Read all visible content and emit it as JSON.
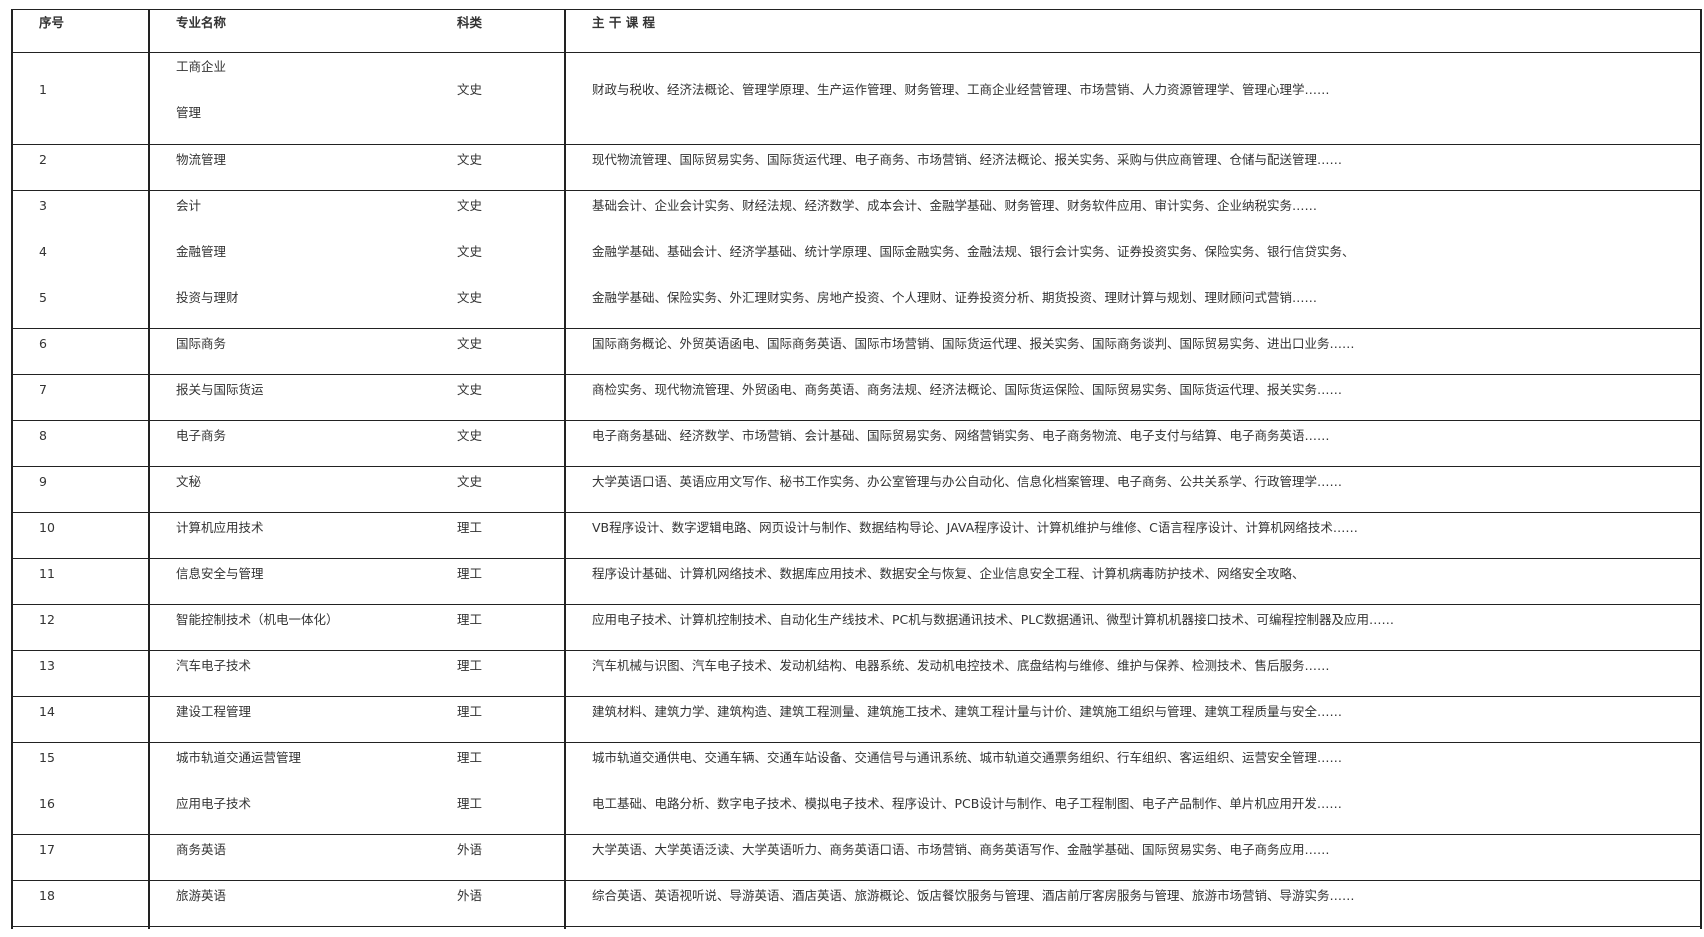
{
  "header": {
    "index": "序号",
    "major": "专业名称",
    "category": "科类",
    "courses": "主 干 课 程"
  },
  "rows": [
    {
      "index": "1",
      "major": [
        "工商企业",
        "管理"
      ],
      "category": "文史",
      "courses": "财政与税收、经济法概论、管理学原理、生产运作管理、财务管理、工商企业经营管理、市场营销、人力资源管理学、管理心理学……"
    },
    {
      "index": "2",
      "major": [
        "物流管理"
      ],
      "category": "文史",
      "courses": "现代物流管理、国际贸易实务、国际货运代理、电子商务、市场营销、经济法概论、报关实务、采购与供应商管理、仓储与配送管理……"
    },
    {
      "index": "3",
      "major": [
        "会计"
      ],
      "category": "文史",
      "courses": "基础会计、企业会计实务、财经法规、经济数学、成本会计、金融学基础、财务管理、财务软件应用、审计实务、企业纳税实务……"
    },
    {
      "index": "4",
      "major": [
        "金融管理"
      ],
      "category": "文史",
      "courses": "金融学基础、基础会计、经济学基础、统计学原理、国际金融实务、金融法规、银行会计实务、证券投资实务、保险实务、银行信贷实务、"
    },
    {
      "index": "5",
      "major": [
        "投资与理财"
      ],
      "category": "文史",
      "courses": "金融学基础、保险实务、外汇理财实务、房地产投资、个人理财、证券投资分析、期货投资、理财计算与规划、理财顾问式营销……"
    },
    {
      "index": "6",
      "major": [
        "国际商务"
      ],
      "category": "文史",
      "courses": "国际商务概论、外贸英语函电、国际商务英语、国际市场营销、国际货运代理、报关实务、国际商务谈判、国际贸易实务、进出口业务……"
    },
    {
      "index": "7",
      "major": [
        "报关与国际货运"
      ],
      "category": "文史",
      "courses": "商检实务、现代物流管理、外贸函电、商务英语、商务法规、经济法概论、国际货运保险、国际贸易实务、国际货运代理、报关实务……"
    },
    {
      "index": "8",
      "major": [
        "电子商务"
      ],
      "category": "文史",
      "courses": "电子商务基础、经济数学、市场营销、会计基础、国际贸易实务、网络营销实务、电子商务物流、电子支付与结算、电子商务英语……"
    },
    {
      "index": "9",
      "major": [
        "文秘"
      ],
      "category": "文史",
      "courses": "大学英语口语、英语应用文写作、秘书工作实务、办公室管理与办公自动化、信息化档案管理、电子商务、公共关系学、行政管理学……"
    },
    {
      "index": "10",
      "major": [
        "计算机应用技术"
      ],
      "category": "理工",
      "courses": "VB程序设计、数字逻辑电路、网页设计与制作、数据结构导论、JAVA程序设计、计算机维护与维修、C语言程序设计、计算机网络技术……"
    },
    {
      "index": "11",
      "major": [
        "信息安全与管理"
      ],
      "category": "理工",
      "courses": "程序设计基础、计算机网络技术、数据库应用技术、数据安全与恢复、企业信息安全工程、计算机病毒防护技术、网络安全攻略、"
    },
    {
      "index": "12",
      "major": [
        "智能控制技术（机电一体化）"
      ],
      "category": "理工",
      "courses": "应用电子技术、计算机控制技术、自动化生产线技术、PC机与数据通讯技术、PLC数据通讯、微型计算机机器接口技术、可编程控制器及应用……"
    },
    {
      "index": "13",
      "major": [
        "汽车电子技术"
      ],
      "category": "理工",
      "courses": "汽车机械与识图、汽车电子技术、发动机结构、电器系统、发动机电控技术、底盘结构与维修、维护与保养、检测技术、售后服务……"
    },
    {
      "index": "14",
      "major": [
        "建设工程管理"
      ],
      "category": "理工",
      "courses": "建筑材料、建筑力学、建筑构造、建筑工程测量、建筑施工技术、建筑工程计量与计价、建筑施工组织与管理、建筑工程质量与安全……"
    },
    {
      "index": "15",
      "major": [
        "城市轨道交通运营管理"
      ],
      "category": "理工",
      "courses": "城市轨道交通供电、交通车辆、交通车站设备、交通信号与通讯系统、城市轨道交通票务组织、行车组织、客运组织、运营安全管理……"
    },
    {
      "index": "16",
      "major": [
        "应用电子技术"
      ],
      "category": "理工",
      "courses": "电工基础、电路分析、数字电子技术、模拟电子技术、程序设计、PCB设计与制作、电子工程制图、电子产品制作、单片机应用开发……"
    },
    {
      "index": "17",
      "major": [
        "商务英语"
      ],
      "category": "外语",
      "courses": "大学英语、大学英语泛读、大学英语听力、商务英语口语、市场营销、商务英语写作、金融学基础、国际贸易实务、电子商务应用……"
    },
    {
      "index": "18",
      "major": [
        "旅游英语"
      ],
      "category": "外语",
      "courses": "综合英语、英语视听说、导游英语、酒店英语、旅游概论、饭店餐饮服务与管理、酒店前厅客房服务与管理、旅游市场营销、导游实务……"
    }
  ]
}
